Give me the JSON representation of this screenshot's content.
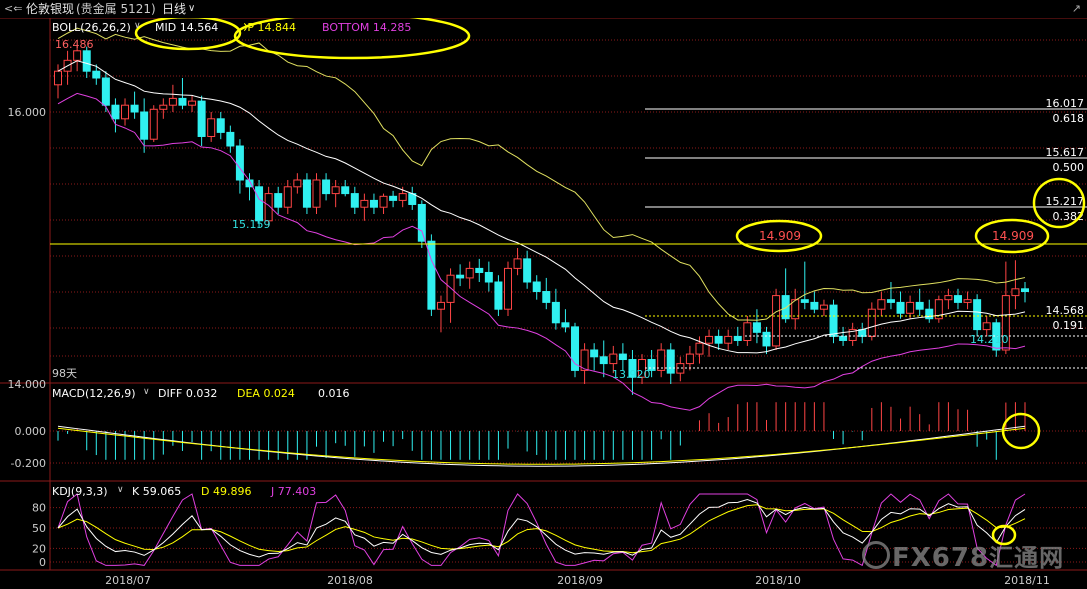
{
  "app": {
    "instrument": "伦敦银现",
    "instrument_extra": "(贵金属 5121)",
    "period": "日线",
    "back_icon": "back-arrow-icon",
    "dropdown_icon": "chevron-down-icon"
  },
  "boll": {
    "label": "BOLL(26,26,2)",
    "mid": "MID 14.564",
    "top": "TOP 14.844",
    "bottom": "BOTTOM 14.285"
  },
  "macd": {
    "label": "MACD(12,26,9)",
    "diff": "DIFF 0.032",
    "dea": "DEA 0.024",
    "val": "0.016"
  },
  "kdj": {
    "label": "KDJ(9,3,3)",
    "k": "K 59.065",
    "d": "D 49.896",
    "j": "J 77.403"
  },
  "watermark": "FX678",
  "watermark_cn": "汇通网",
  "colors": {
    "up": "#ff4545",
    "down": "#30f0f0",
    "boll_mid": "#ffffff",
    "boll_top": "#e0e060",
    "boll_bot": "#e040e0",
    "level_line": "#ffff00",
    "highlight_ring": "#ffff00",
    "grid": "#8b1a1a"
  },
  "chart_data": {
    "type": "candlestick",
    "price_axis": {
      "ticks": [
        "16.000",
        "14.000"
      ],
      "ylim": [
        13.85,
        16.7
      ]
    },
    "x_labels": [
      "2018/07",
      "2018/08",
      "2018/09",
      "2018/10",
      "2018/11"
    ],
    "annotations": {
      "high_label": "16.486",
      "low_labels": [
        "15.159",
        "13.920",
        "14.210"
      ],
      "days_label": "98天",
      "callouts": [
        "14.909",
        "14.909"
      ]
    },
    "fib_levels": [
      {
        "price": "16.017",
        "ratio": "0.618"
      },
      {
        "price": "15.617",
        "ratio": "0.500"
      },
      {
        "price": "15.217",
        "ratio": "0.382"
      },
      {
        "price": "14.568",
        "ratio": "0.191"
      }
    ],
    "macd_axis": [
      "0.000",
      "-0.200"
    ],
    "kdj_axis": [
      "80",
      "50",
      "20",
      "0"
    ],
    "candles": [
      {
        "o": 16.2,
        "h": 16.35,
        "l": 16.1,
        "c": 16.3
      },
      {
        "o": 16.3,
        "h": 16.45,
        "l": 16.2,
        "c": 16.38
      },
      {
        "o": 16.38,
        "h": 16.49,
        "l": 16.3,
        "c": 16.45
      },
      {
        "o": 16.45,
        "h": 16.48,
        "l": 16.25,
        "c": 16.3
      },
      {
        "o": 16.3,
        "h": 16.35,
        "l": 16.2,
        "c": 16.25
      },
      {
        "o": 16.25,
        "h": 16.3,
        "l": 16.0,
        "c": 16.05
      },
      {
        "o": 16.05,
        "h": 16.1,
        "l": 15.85,
        "c": 15.95
      },
      {
        "o": 15.95,
        "h": 16.1,
        "l": 15.9,
        "c": 16.05
      },
      {
        "o": 16.05,
        "h": 16.15,
        "l": 15.95,
        "c": 16.0
      },
      {
        "o": 16.0,
        "h": 16.1,
        "l": 15.7,
        "c": 15.8
      },
      {
        "o": 15.8,
        "h": 16.05,
        "l": 15.78,
        "c": 16.02
      },
      {
        "o": 16.02,
        "h": 16.1,
        "l": 15.95,
        "c": 16.05
      },
      {
        "o": 16.05,
        "h": 16.2,
        "l": 16.0,
        "c": 16.1
      },
      {
        "o": 16.1,
        "h": 16.25,
        "l": 16.02,
        "c": 16.05
      },
      {
        "o": 16.05,
        "h": 16.12,
        "l": 16.0,
        "c": 16.08
      },
      {
        "o": 16.08,
        "h": 16.12,
        "l": 15.75,
        "c": 15.82
      },
      {
        "o": 15.82,
        "h": 16.0,
        "l": 15.78,
        "c": 15.95
      },
      {
        "o": 15.95,
        "h": 16.0,
        "l": 15.8,
        "c": 15.85
      },
      {
        "o": 15.85,
        "h": 15.9,
        "l": 15.7,
        "c": 15.75
      },
      {
        "o": 15.75,
        "h": 15.8,
        "l": 15.4,
        "c": 15.5
      },
      {
        "o": 15.5,
        "h": 15.55,
        "l": 15.35,
        "c": 15.45
      },
      {
        "o": 15.45,
        "h": 15.5,
        "l": 15.15,
        "c": 15.2
      },
      {
        "o": 15.2,
        "h": 15.45,
        "l": 15.16,
        "c": 15.4
      },
      {
        "o": 15.4,
        "h": 15.45,
        "l": 15.25,
        "c": 15.3
      },
      {
        "o": 15.3,
        "h": 15.5,
        "l": 15.25,
        "c": 15.45
      },
      {
        "o": 15.45,
        "h": 15.55,
        "l": 15.4,
        "c": 15.5
      },
      {
        "o": 15.5,
        "h": 15.55,
        "l": 15.25,
        "c": 15.3
      },
      {
        "o": 15.3,
        "h": 15.55,
        "l": 15.25,
        "c": 15.5
      },
      {
        "o": 15.5,
        "h": 15.55,
        "l": 15.35,
        "c": 15.4
      },
      {
        "o": 15.4,
        "h": 15.5,
        "l": 15.3,
        "c": 15.45
      },
      {
        "o": 15.45,
        "h": 15.5,
        "l": 15.38,
        "c": 15.4
      },
      {
        "o": 15.4,
        "h": 15.45,
        "l": 15.25,
        "c": 15.3
      },
      {
        "o": 15.3,
        "h": 15.4,
        "l": 15.2,
        "c": 15.35
      },
      {
        "o": 15.35,
        "h": 15.4,
        "l": 15.25,
        "c": 15.3
      },
      {
        "o": 15.3,
        "h": 15.4,
        "l": 15.25,
        "c": 15.38
      },
      {
        "o": 15.38,
        "h": 15.42,
        "l": 15.3,
        "c": 15.35
      },
      {
        "o": 15.35,
        "h": 15.45,
        "l": 15.3,
        "c": 15.4
      },
      {
        "o": 15.4,
        "h": 15.45,
        "l": 15.28,
        "c": 15.32
      },
      {
        "o": 15.32,
        "h": 15.35,
        "l": 15.0,
        "c": 15.05
      },
      {
        "o": 15.05,
        "h": 15.1,
        "l": 14.5,
        "c": 14.55
      },
      {
        "o": 14.55,
        "h": 14.65,
        "l": 14.38,
        "c": 14.6
      },
      {
        "o": 14.6,
        "h": 14.85,
        "l": 14.45,
        "c": 14.8
      },
      {
        "o": 14.8,
        "h": 14.88,
        "l": 14.72,
        "c": 14.78
      },
      {
        "o": 14.78,
        "h": 14.9,
        "l": 14.7,
        "c": 14.85
      },
      {
        "o": 14.85,
        "h": 14.92,
        "l": 14.75,
        "c": 14.82
      },
      {
        "o": 14.82,
        "h": 14.9,
        "l": 14.68,
        "c": 14.75
      },
      {
        "o": 14.75,
        "h": 14.8,
        "l": 14.5,
        "c": 14.55
      },
      {
        "o": 14.55,
        "h": 14.9,
        "l": 14.5,
        "c": 14.85
      },
      {
        "o": 14.85,
        "h": 15.0,
        "l": 14.8,
        "c": 14.92
      },
      {
        "o": 14.92,
        "h": 14.98,
        "l": 14.7,
        "c": 14.75
      },
      {
        "o": 14.75,
        "h": 14.8,
        "l": 14.62,
        "c": 14.68
      },
      {
        "o": 14.68,
        "h": 14.78,
        "l": 14.55,
        "c": 14.6
      },
      {
        "o": 14.6,
        "h": 14.7,
        "l": 14.4,
        "c": 14.45
      },
      {
        "o": 14.45,
        "h": 14.55,
        "l": 14.38,
        "c": 14.42
      },
      {
        "o": 14.42,
        "h": 14.45,
        "l": 14.05,
        "c": 14.1
      },
      {
        "o": 14.1,
        "h": 14.3,
        "l": 14.0,
        "c": 14.25
      },
      {
        "o": 14.25,
        "h": 14.3,
        "l": 14.1,
        "c": 14.2
      },
      {
        "o": 14.2,
        "h": 14.32,
        "l": 14.05,
        "c": 14.15
      },
      {
        "o": 14.15,
        "h": 14.28,
        "l": 14.08,
        "c": 14.22
      },
      {
        "o": 14.22,
        "h": 14.3,
        "l": 14.1,
        "c": 14.18
      },
      {
        "o": 14.18,
        "h": 14.25,
        "l": 13.92,
        "c": 14.05
      },
      {
        "o": 14.05,
        "h": 14.22,
        "l": 14.0,
        "c": 14.18
      },
      {
        "o": 14.18,
        "h": 14.25,
        "l": 14.05,
        "c": 14.1
      },
      {
        "o": 14.1,
        "h": 14.3,
        "l": 14.05,
        "c": 14.25
      },
      {
        "o": 14.25,
        "h": 14.3,
        "l": 14.0,
        "c": 14.08
      },
      {
        "o": 14.08,
        "h": 14.2,
        "l": 14.02,
        "c": 14.15
      },
      {
        "o": 14.15,
        "h": 14.28,
        "l": 14.1,
        "c": 14.22
      },
      {
        "o": 14.22,
        "h": 14.35,
        "l": 14.15,
        "c": 14.3
      },
      {
        "o": 14.3,
        "h": 14.4,
        "l": 14.2,
        "c": 14.35
      },
      {
        "o": 14.35,
        "h": 14.4,
        "l": 14.25,
        "c": 14.3
      },
      {
        "o": 14.3,
        "h": 14.4,
        "l": 14.25,
        "c": 14.35
      },
      {
        "o": 14.35,
        "h": 14.42,
        "l": 14.28,
        "c": 14.32
      },
      {
        "o": 14.32,
        "h": 14.5,
        "l": 14.28,
        "c": 14.45
      },
      {
        "o": 14.45,
        "h": 14.55,
        "l": 14.3,
        "c": 14.38
      },
      {
        "o": 14.38,
        "h": 14.42,
        "l": 14.22,
        "c": 14.28
      },
      {
        "o": 14.28,
        "h": 14.7,
        "l": 14.25,
        "c": 14.65
      },
      {
        "o": 14.65,
        "h": 14.85,
        "l": 14.45,
        "c": 14.48
      },
      {
        "o": 14.48,
        "h": 14.7,
        "l": 14.4,
        "c": 14.62
      },
      {
        "o": 14.62,
        "h": 14.9,
        "l": 14.55,
        "c": 14.6
      },
      {
        "o": 14.6,
        "h": 14.68,
        "l": 14.52,
        "c": 14.55
      },
      {
        "o": 14.55,
        "h": 14.62,
        "l": 14.5,
        "c": 14.58
      },
      {
        "o": 14.58,
        "h": 14.62,
        "l": 14.3,
        "c": 14.35
      },
      {
        "o": 14.35,
        "h": 14.42,
        "l": 14.28,
        "c": 14.32
      },
      {
        "o": 14.32,
        "h": 14.45,
        "l": 14.28,
        "c": 14.4
      },
      {
        "o": 14.4,
        "h": 14.45,
        "l": 14.3,
        "c": 14.35
      },
      {
        "o": 14.35,
        "h": 14.6,
        "l": 14.32,
        "c": 14.55
      },
      {
        "o": 14.55,
        "h": 14.68,
        "l": 14.5,
        "c": 14.62
      },
      {
        "o": 14.62,
        "h": 14.75,
        "l": 14.55,
        "c": 14.6
      },
      {
        "o": 14.6,
        "h": 14.68,
        "l": 14.48,
        "c": 14.52
      },
      {
        "o": 14.52,
        "h": 14.65,
        "l": 14.48,
        "c": 14.6
      },
      {
        "o": 14.6,
        "h": 14.7,
        "l": 14.5,
        "c": 14.55
      },
      {
        "o": 14.55,
        "h": 14.62,
        "l": 14.45,
        "c": 14.48
      },
      {
        "o": 14.48,
        "h": 14.65,
        "l": 14.45,
        "c": 14.62
      },
      {
        "o": 14.62,
        "h": 14.7,
        "l": 14.55,
        "c": 14.65
      },
      {
        "o": 14.65,
        "h": 14.7,
        "l": 14.55,
        "c": 14.6
      },
      {
        "o": 14.6,
        "h": 14.68,
        "l": 14.55,
        "c": 14.62
      },
      {
        "o": 14.62,
        "h": 14.66,
        "l": 14.35,
        "c": 14.4
      },
      {
        "o": 14.4,
        "h": 14.5,
        "l": 14.35,
        "c": 14.45
      },
      {
        "o": 14.45,
        "h": 14.48,
        "l": 14.2,
        "c": 14.25
      },
      {
        "o": 14.25,
        "h": 14.9,
        "l": 14.22,
        "c": 14.65
      },
      {
        "o": 14.65,
        "h": 14.91,
        "l": 14.55,
        "c": 14.7
      },
      {
        "o": 14.7,
        "h": 14.75,
        "l": 14.6,
        "c": 14.68
      }
    ]
  }
}
